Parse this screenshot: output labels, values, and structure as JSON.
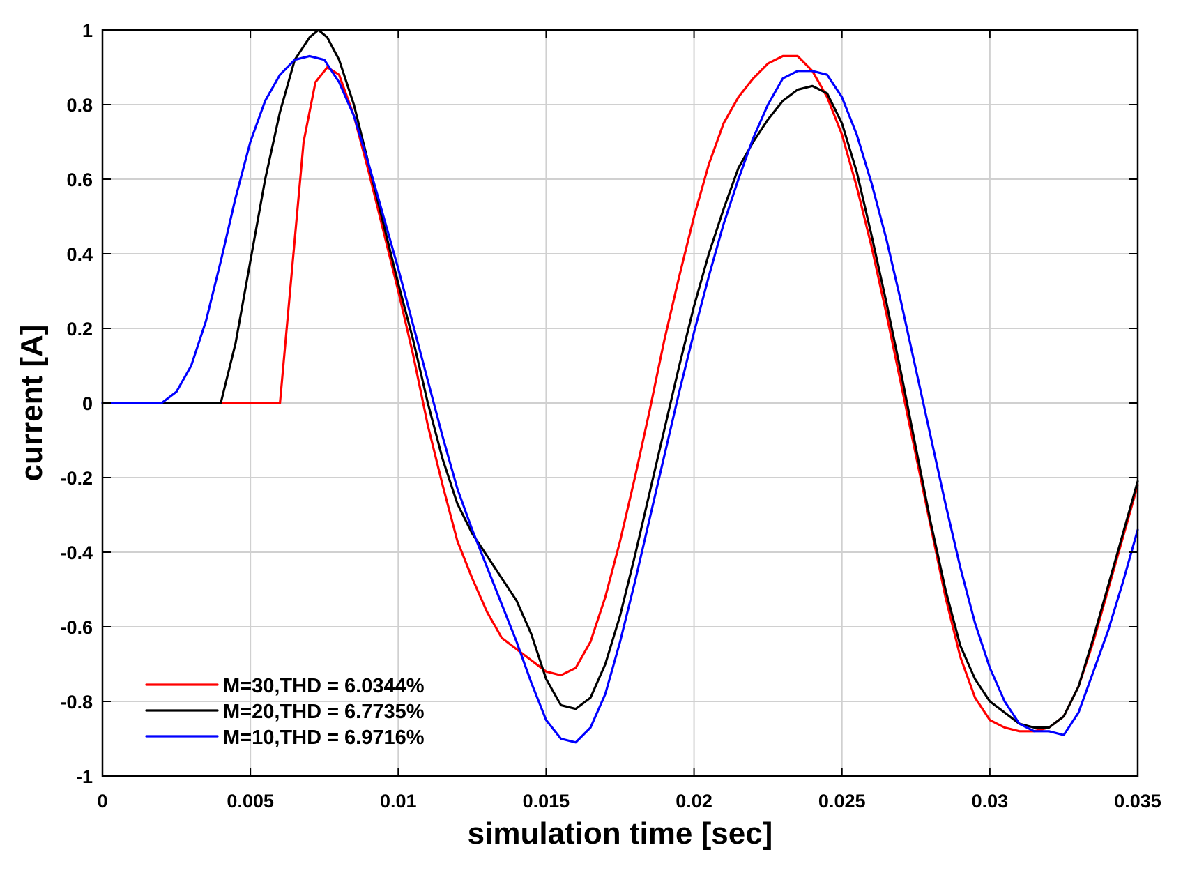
{
  "chart_data": {
    "type": "line",
    "title": "",
    "xlabel": "simulation time [sec]",
    "ylabel": "current [A]",
    "xlim": [
      0,
      0.035
    ],
    "ylim": [
      -1,
      1
    ],
    "grid": true,
    "legend_position": "bottom-left",
    "x_ticks": [
      {
        "value": 0,
        "label": "0"
      },
      {
        "value": 0.005,
        "label": "0.005"
      },
      {
        "value": 0.01,
        "label": "0.01"
      },
      {
        "value": 0.015,
        "label": "0.015"
      },
      {
        "value": 0.02,
        "label": "0.02"
      },
      {
        "value": 0.025,
        "label": "0.025"
      },
      {
        "value": 0.03,
        "label": "0.03"
      },
      {
        "value": 0.035,
        "label": "0.035"
      }
    ],
    "y_ticks": [
      {
        "value": 1,
        "label": "1"
      },
      {
        "value": 0.8,
        "label": "0.8"
      },
      {
        "value": 0.6,
        "label": "0.6"
      },
      {
        "value": 0.4,
        "label": "0.4"
      },
      {
        "value": 0.2,
        "label": "0.2"
      },
      {
        "value": 0,
        "label": "0"
      },
      {
        "value": -0.2,
        "label": "-0.2"
      },
      {
        "value": -0.4,
        "label": "-0.4"
      },
      {
        "value": -0.6,
        "label": "-0.6"
      },
      {
        "value": -0.8,
        "label": "-0.8"
      },
      {
        "value": -1,
        "label": "-1"
      }
    ],
    "series": [
      {
        "name": "M=30,THD = 6.0344%",
        "color": "#ff0000",
        "points": [
          [
            0,
            0
          ],
          [
            0.006,
            0
          ],
          [
            0.0064,
            0.35
          ],
          [
            0.0068,
            0.7
          ],
          [
            0.0072,
            0.86
          ],
          [
            0.0076,
            0.9
          ],
          [
            0.008,
            0.88
          ],
          [
            0.0085,
            0.77
          ],
          [
            0.009,
            0.62
          ],
          [
            0.0095,
            0.46
          ],
          [
            0.01,
            0.3
          ],
          [
            0.0105,
            0.13
          ],
          [
            0.011,
            -0.06
          ],
          [
            0.0115,
            -0.22
          ],
          [
            0.012,
            -0.37
          ],
          [
            0.0125,
            -0.47
          ],
          [
            0.013,
            -0.56
          ],
          [
            0.0135,
            -0.63
          ],
          [
            0.014,
            -0.66
          ],
          [
            0.0145,
            -0.69
          ],
          [
            0.015,
            -0.72
          ],
          [
            0.0155,
            -0.73
          ],
          [
            0.016,
            -0.71
          ],
          [
            0.0165,
            -0.64
          ],
          [
            0.017,
            -0.52
          ],
          [
            0.0175,
            -0.37
          ],
          [
            0.018,
            -0.2
          ],
          [
            0.0185,
            -0.02
          ],
          [
            0.019,
            0.17
          ],
          [
            0.0195,
            0.34
          ],
          [
            0.02,
            0.5
          ],
          [
            0.0205,
            0.64
          ],
          [
            0.021,
            0.75
          ],
          [
            0.0215,
            0.82
          ],
          [
            0.022,
            0.87
          ],
          [
            0.0225,
            0.91
          ],
          [
            0.023,
            0.93
          ],
          [
            0.0235,
            0.93
          ],
          [
            0.024,
            0.89
          ],
          [
            0.0245,
            0.82
          ],
          [
            0.025,
            0.72
          ],
          [
            0.0255,
            0.58
          ],
          [
            0.026,
            0.42
          ],
          [
            0.0265,
            0.24
          ],
          [
            0.027,
            0.05
          ],
          [
            0.0275,
            -0.14
          ],
          [
            0.028,
            -0.33
          ],
          [
            0.0285,
            -0.52
          ],
          [
            0.029,
            -0.68
          ],
          [
            0.0295,
            -0.79
          ],
          [
            0.03,
            -0.85
          ],
          [
            0.0305,
            -0.87
          ],
          [
            0.031,
            -0.88
          ],
          [
            0.0315,
            -0.88
          ],
          [
            0.032,
            -0.87
          ],
          [
            0.0325,
            -0.84
          ],
          [
            0.033,
            -0.76
          ],
          [
            0.0335,
            -0.64
          ],
          [
            0.034,
            -0.5
          ],
          [
            0.0345,
            -0.36
          ],
          [
            0.035,
            -0.22
          ]
        ]
      },
      {
        "name": "M=20,THD = 6.7735%",
        "color": "#000000",
        "points": [
          [
            0,
            0
          ],
          [
            0.004,
            0
          ],
          [
            0.0045,
            0.16
          ],
          [
            0.005,
            0.38
          ],
          [
            0.0055,
            0.6
          ],
          [
            0.006,
            0.78
          ],
          [
            0.0065,
            0.92
          ],
          [
            0.007,
            0.98
          ],
          [
            0.0073,
            1.0
          ],
          [
            0.0076,
            0.98
          ],
          [
            0.008,
            0.92
          ],
          [
            0.0085,
            0.8
          ],
          [
            0.009,
            0.64
          ],
          [
            0.0095,
            0.48
          ],
          [
            0.01,
            0.32
          ],
          [
            0.0105,
            0.17
          ],
          [
            0.011,
            0.0
          ],
          [
            0.0115,
            -0.15
          ],
          [
            0.012,
            -0.27
          ],
          [
            0.0125,
            -0.35
          ],
          [
            0.013,
            -0.41
          ],
          [
            0.0135,
            -0.47
          ],
          [
            0.014,
            -0.53
          ],
          [
            0.0145,
            -0.62
          ],
          [
            0.015,
            -0.74
          ],
          [
            0.0155,
            -0.81
          ],
          [
            0.016,
            -0.82
          ],
          [
            0.0165,
            -0.79
          ],
          [
            0.017,
            -0.7
          ],
          [
            0.0175,
            -0.57
          ],
          [
            0.018,
            -0.41
          ],
          [
            0.0185,
            -0.24
          ],
          [
            0.019,
            -0.07
          ],
          [
            0.0195,
            0.1
          ],
          [
            0.02,
            0.26
          ],
          [
            0.0205,
            0.4
          ],
          [
            0.021,
            0.52
          ],
          [
            0.0215,
            0.63
          ],
          [
            0.022,
            0.7
          ],
          [
            0.0225,
            0.76
          ],
          [
            0.023,
            0.81
          ],
          [
            0.0235,
            0.84
          ],
          [
            0.024,
            0.85
          ],
          [
            0.0245,
            0.83
          ],
          [
            0.025,
            0.75
          ],
          [
            0.0255,
            0.62
          ],
          [
            0.026,
            0.45
          ],
          [
            0.0265,
            0.27
          ],
          [
            0.027,
            0.08
          ],
          [
            0.0275,
            -0.12
          ],
          [
            0.028,
            -0.32
          ],
          [
            0.0285,
            -0.5
          ],
          [
            0.029,
            -0.65
          ],
          [
            0.0295,
            -0.74
          ],
          [
            0.03,
            -0.8
          ],
          [
            0.0305,
            -0.83
          ],
          [
            0.031,
            -0.86
          ],
          [
            0.0315,
            -0.87
          ],
          [
            0.032,
            -0.87
          ],
          [
            0.0325,
            -0.84
          ],
          [
            0.033,
            -0.76
          ],
          [
            0.0335,
            -0.63
          ],
          [
            0.034,
            -0.49
          ],
          [
            0.0345,
            -0.35
          ],
          [
            0.035,
            -0.21
          ]
        ]
      },
      {
        "name": "M=10,THD = 6.9716%",
        "color": "#0000ff",
        "points": [
          [
            0,
            0
          ],
          [
            0.002,
            0
          ],
          [
            0.0025,
            0.03
          ],
          [
            0.003,
            0.1
          ],
          [
            0.0035,
            0.22
          ],
          [
            0.004,
            0.38
          ],
          [
            0.0045,
            0.55
          ],
          [
            0.005,
            0.7
          ],
          [
            0.0055,
            0.81
          ],
          [
            0.006,
            0.88
          ],
          [
            0.0065,
            0.92
          ],
          [
            0.007,
            0.93
          ],
          [
            0.0075,
            0.92
          ],
          [
            0.008,
            0.86
          ],
          [
            0.0085,
            0.77
          ],
          [
            0.009,
            0.64
          ],
          [
            0.0095,
            0.5
          ],
          [
            0.01,
            0.36
          ],
          [
            0.0105,
            0.21
          ],
          [
            0.011,
            0.06
          ],
          [
            0.0115,
            -0.09
          ],
          [
            0.012,
            -0.23
          ],
          [
            0.0125,
            -0.34
          ],
          [
            0.013,
            -0.44
          ],
          [
            0.0135,
            -0.54
          ],
          [
            0.014,
            -0.64
          ],
          [
            0.0145,
            -0.75
          ],
          [
            0.015,
            -0.85
          ],
          [
            0.0155,
            -0.9
          ],
          [
            0.016,
            -0.91
          ],
          [
            0.0165,
            -0.87
          ],
          [
            0.017,
            -0.78
          ],
          [
            0.0175,
            -0.64
          ],
          [
            0.018,
            -0.48
          ],
          [
            0.0185,
            -0.31
          ],
          [
            0.019,
            -0.14
          ],
          [
            0.0195,
            0.03
          ],
          [
            0.02,
            0.19
          ],
          [
            0.0205,
            0.34
          ],
          [
            0.021,
            0.48
          ],
          [
            0.0215,
            0.6
          ],
          [
            0.022,
            0.71
          ],
          [
            0.0225,
            0.8
          ],
          [
            0.023,
            0.87
          ],
          [
            0.0235,
            0.89
          ],
          [
            0.024,
            0.89
          ],
          [
            0.0245,
            0.88
          ],
          [
            0.025,
            0.82
          ],
          [
            0.0255,
            0.72
          ],
          [
            0.026,
            0.59
          ],
          [
            0.0265,
            0.44
          ],
          [
            0.027,
            0.27
          ],
          [
            0.0275,
            0.09
          ],
          [
            0.028,
            -0.09
          ],
          [
            0.0285,
            -0.27
          ],
          [
            0.029,
            -0.44
          ],
          [
            0.0295,
            -0.59
          ],
          [
            0.03,
            -0.71
          ],
          [
            0.0305,
            -0.8
          ],
          [
            0.031,
            -0.86
          ],
          [
            0.0315,
            -0.88
          ],
          [
            0.032,
            -0.88
          ],
          [
            0.0325,
            -0.89
          ],
          [
            0.033,
            -0.83
          ],
          [
            0.0335,
            -0.72
          ],
          [
            0.034,
            -0.61
          ],
          [
            0.0345,
            -0.48
          ],
          [
            0.035,
            -0.34
          ]
        ]
      }
    ]
  }
}
